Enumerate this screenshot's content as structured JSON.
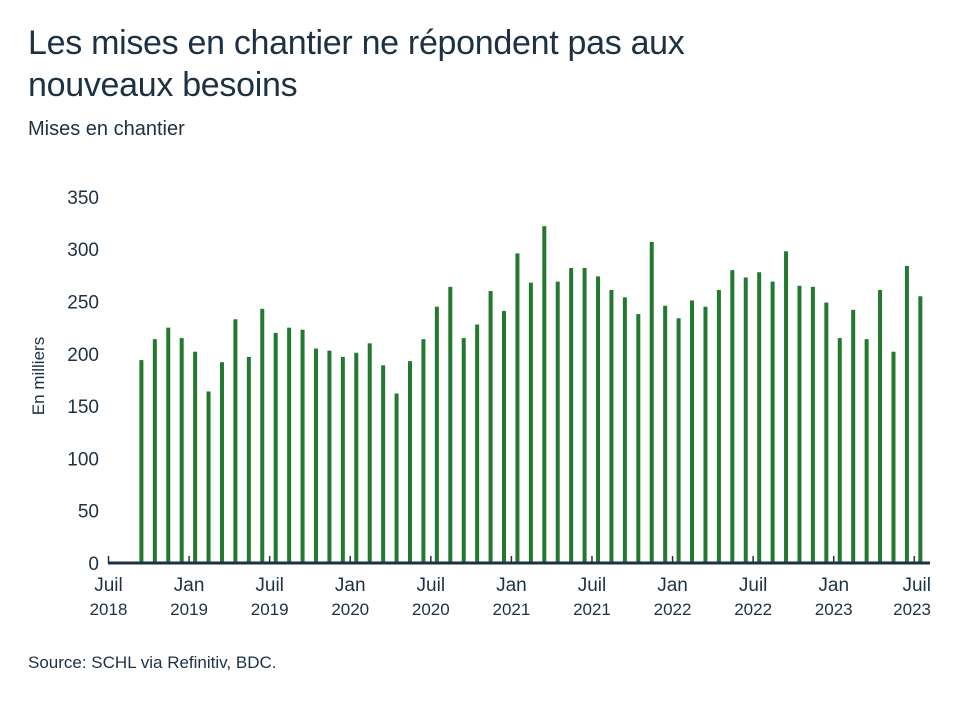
{
  "header": {
    "title": "Les mises en chantier ne répondent pas aux nouveaux besoins",
    "subtitle": "Mises en chantier"
  },
  "footer": {
    "source": "Source: SCHL via Refinitiv, BDC."
  },
  "colors": {
    "bar": "#237a2e",
    "axis": "#1d3144",
    "text": "#1d3144"
  },
  "chart_data": {
    "type": "bar",
    "title": "Les mises en chantier ne répondent pas aux nouveaux besoins",
    "subtitle": "Mises en chantier",
    "xlabel": "",
    "ylabel": "En milliers",
    "ylim": [
      0,
      350
    ],
    "y_ticks": [
      0,
      50,
      100,
      150,
      200,
      250,
      300,
      350
    ],
    "x_range": [
      "2018-07",
      "2023-07"
    ],
    "x_ticks": [
      {
        "month": "Juil",
        "year": "2018"
      },
      {
        "month": "Jan",
        "year": "2019"
      },
      {
        "month": "Juil",
        "year": "2019"
      },
      {
        "month": "Jan",
        "year": "2020"
      },
      {
        "month": "Juil",
        "year": "2020"
      },
      {
        "month": "Jan",
        "year": "2021"
      },
      {
        "month": "Juil",
        "year": "2021"
      },
      {
        "month": "Jan",
        "year": "2022"
      },
      {
        "month": "Juil",
        "year": "2022"
      },
      {
        "month": "Jan",
        "year": "2023"
      },
      {
        "month": "Juil",
        "year": "2023"
      }
    ],
    "grid": false,
    "legend": "none",
    "categories": [
      "2018-09",
      "2018-10",
      "2018-11",
      "2018-12",
      "2019-01",
      "2019-02",
      "2019-03",
      "2019-04",
      "2019-05",
      "2019-06",
      "2019-07",
      "2019-08",
      "2019-09",
      "2019-10",
      "2019-11",
      "2019-12",
      "2020-01",
      "2020-02",
      "2020-03",
      "2020-04",
      "2020-05",
      "2020-06",
      "2020-07",
      "2020-08",
      "2020-09",
      "2020-10",
      "2020-11",
      "2020-12",
      "2021-01",
      "2021-02",
      "2021-03",
      "2021-04",
      "2021-05",
      "2021-06",
      "2021-07",
      "2021-08",
      "2021-09",
      "2021-10",
      "2021-11",
      "2021-12",
      "2022-01",
      "2022-02",
      "2022-03",
      "2022-04",
      "2022-05",
      "2022-06",
      "2022-07",
      "2022-08",
      "2022-09",
      "2022-10",
      "2022-11",
      "2022-12",
      "2023-01",
      "2023-02",
      "2023-03",
      "2023-04",
      "2023-05",
      "2023-06",
      "2023-07"
    ],
    "series": [
      {
        "name": "Mises en chantier",
        "values": [
          194,
          214,
          225,
          215,
          202,
          164,
          192,
          233,
          197,
          243,
          220,
          225,
          223,
          205,
          203,
          197,
          201,
          210,
          189,
          162,
          193,
          214,
          245,
          264,
          215,
          228,
          260,
          241,
          296,
          268,
          322,
          269,
          282,
          282,
          274,
          261,
          254,
          238,
          307,
          246,
          234,
          251,
          245,
          261,
          280,
          273,
          278,
          269,
          298,
          265,
          264,
          249,
          215,
          242,
          214,
          261,
          202,
          284,
          255
        ]
      }
    ]
  }
}
